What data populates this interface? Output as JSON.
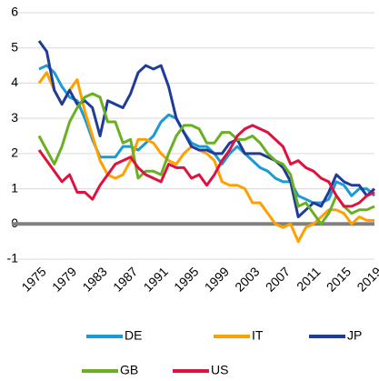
{
  "chart_data": {
    "type": "line",
    "x": [
      1975,
      1976,
      1977,
      1978,
      1979,
      1980,
      1981,
      1982,
      1983,
      1984,
      1985,
      1986,
      1987,
      1988,
      1989,
      1990,
      1991,
      1992,
      1993,
      1994,
      1995,
      1996,
      1997,
      1998,
      1999,
      2000,
      2001,
      2002,
      2003,
      2004,
      2005,
      2006,
      2007,
      2008,
      2009,
      2010,
      2011,
      2012,
      2013,
      2014,
      2015,
      2016,
      2017,
      2018,
      2019
    ],
    "xlim": [
      1975,
      2019
    ],
    "xticks": [
      1975,
      1979,
      1983,
      1987,
      1991,
      1995,
      1999,
      2003,
      2007,
      2011,
      2015,
      2019
    ],
    "ylim": [
      -1,
      6
    ],
    "yticks": [
      -1,
      0,
      1,
      2,
      3,
      4,
      5,
      6
    ],
    "grid": true,
    "series": [
      {
        "name": "DE",
        "color": "#1a9ad6",
        "values": [
          4.4,
          4.5,
          4.3,
          3.9,
          3.6,
          3.5,
          3.0,
          2.4,
          1.9,
          1.9,
          1.9,
          2.2,
          2.2,
          2.1,
          2.3,
          2.5,
          2.9,
          3.1,
          3.0,
          2.6,
          2.3,
          2.2,
          2.2,
          2.0,
          1.7,
          2.0,
          2.2,
          2.0,
          1.8,
          1.6,
          1.5,
          1.3,
          1.2,
          1.2,
          0.8,
          0.7,
          0.6,
          0.6,
          0.7,
          1.2,
          1.1,
          0.8,
          1.0,
          1.0,
          0.8
        ]
      },
      {
        "name": "IT",
        "color": "#ffa000",
        "values": [
          4.0,
          4.3,
          3.8,
          3.4,
          3.8,
          4.1,
          3.2,
          2.5,
          1.8,
          1.4,
          1.3,
          1.4,
          1.8,
          2.4,
          2.4,
          2.3,
          2.0,
          1.8,
          1.7,
          2.0,
          2.2,
          2.1,
          2.0,
          1.8,
          1.2,
          1.1,
          1.1,
          1.0,
          0.6,
          0.6,
          0.3,
          0.0,
          -0.1,
          0.0,
          -0.5,
          -0.1,
          0.0,
          0.2,
          0.4,
          0.4,
          0.3,
          0.0,
          0.2,
          0.1,
          0.1
        ]
      },
      {
        "name": "JP",
        "color": "#1f3c99",
        "values": [
          5.2,
          4.9,
          3.8,
          3.4,
          3.8,
          3.4,
          3.5,
          3.3,
          2.5,
          3.5,
          3.4,
          3.3,
          3.7,
          4.3,
          4.5,
          4.4,
          4.5,
          3.9,
          3.0,
          2.6,
          2.2,
          2.1,
          2.1,
          2.0,
          2.0,
          2.3,
          2.4,
          2.0,
          2.0,
          2.0,
          1.9,
          1.8,
          1.6,
          1.2,
          0.2,
          0.4,
          0.6,
          0.5,
          0.9,
          1.4,
          1.2,
          1.1,
          1.1,
          0.8,
          1.0
        ]
      },
      {
        "name": "GB",
        "color": "#6ab023",
        "values": [
          2.5,
          2.1,
          1.7,
          2.2,
          2.9,
          3.3,
          3.6,
          3.7,
          3.6,
          2.9,
          2.9,
          2.3,
          2.4,
          1.3,
          1.5,
          1.5,
          1.4,
          2.0,
          2.5,
          2.8,
          2.8,
          2.7,
          2.3,
          2.3,
          2.6,
          2.6,
          2.4,
          2.4,
          2.5,
          2.3,
          2.0,
          1.8,
          1.7,
          1.4,
          0.5,
          0.6,
          0.3,
          0.0,
          0.3,
          0.8,
          0.5,
          0.3,
          0.4,
          0.4,
          0.5
        ]
      },
      {
        "name": "US",
        "color": "#e0103f",
        "values": [
          2.1,
          1.8,
          1.5,
          1.2,
          1.4,
          0.9,
          0.9,
          0.7,
          1.1,
          1.4,
          1.7,
          1.8,
          1.9,
          1.6,
          1.4,
          1.3,
          1.2,
          1.7,
          1.6,
          1.6,
          1.3,
          1.4,
          1.1,
          1.4,
          1.8,
          2.1,
          2.5,
          2.7,
          2.8,
          2.7,
          2.6,
          2.4,
          2.2,
          1.7,
          1.8,
          1.6,
          1.5,
          1.3,
          1.2,
          0.8,
          0.5,
          0.5,
          0.6,
          0.8,
          0.9
        ]
      }
    ]
  }
}
